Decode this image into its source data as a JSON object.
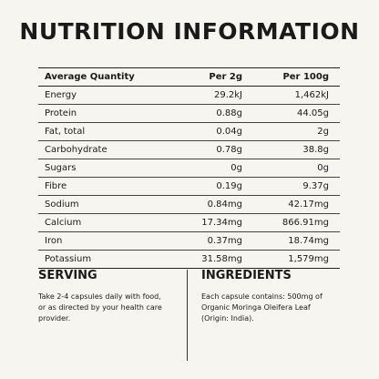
{
  "header": {
    "title": "NUTRITION INFORMATION"
  },
  "table": {
    "columns": [
      "Average Quantity",
      "Per 2g",
      "Per 100g"
    ],
    "rows": [
      [
        "Energy",
        "29.2kJ",
        "1,462kJ"
      ],
      [
        "Protein",
        "0.88g",
        "44.05g"
      ],
      [
        "Fat, total",
        "0.04g",
        "2g"
      ],
      [
        "Carbohydrate",
        "0.78g",
        "38.8g"
      ],
      [
        "Sugars",
        "0g",
        "0g"
      ],
      [
        "Fibre",
        "0.19g",
        "9.37g"
      ],
      [
        "Sodium",
        "0.84mg",
        "42.17mg"
      ],
      [
        "Calcium",
        "17.34mg",
        "866.91mg"
      ],
      [
        "Iron",
        "0.37mg",
        "18.74mg"
      ],
      [
        "Potassium",
        "31.58mg",
        "1,579mg"
      ]
    ]
  },
  "serving": {
    "heading": "SERVING",
    "lines": [
      "Take 2-4 capsules daily with food,",
      "or as directed by your health care",
      "provider."
    ]
  },
  "ingredients": {
    "heading": "INGREDIENTS",
    "lines": [
      "Each capsule contains: 500mg of",
      "Organic Moringa Oleifera Leaf",
      "(Origin: India)."
    ]
  }
}
